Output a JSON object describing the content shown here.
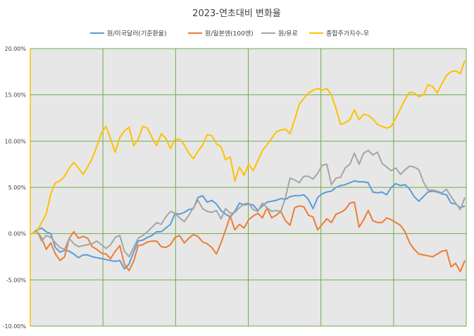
{
  "chart_data": {
    "type": "line",
    "title": "2023-연초대비 변화율",
    "xlabel": "",
    "ylabel": "",
    "ylim": [
      -0.1,
      0.2
    ],
    "yticks": [
      -0.1,
      -0.05,
      0.0,
      0.05,
      0.1,
      0.15,
      0.2
    ],
    "ytick_labels": [
      "-10.00%",
      "-5.00%",
      "0.00%",
      "5.00%",
      "10.00%",
      "15.00%",
      "20.00%"
    ],
    "x_gridlines": 6,
    "grid": true,
    "legend_position": "top",
    "plot_background": "#e7e7e7",
    "grid_color": "#70ad47",
    "series": [
      {
        "name": "원/미국달러(기준환율)",
        "color": "#5b9bd5",
        "values": [
          0.0,
          0.004,
          0.006,
          0.002,
          0.0,
          -0.015,
          -0.02,
          -0.018,
          -0.019,
          -0.022,
          -0.026,
          -0.023,
          -0.023,
          -0.025,
          -0.026,
          -0.027,
          -0.028,
          -0.029,
          -0.03,
          -0.029,
          -0.038,
          -0.033,
          -0.02,
          -0.008,
          -0.007,
          -0.004,
          -0.002,
          0.002,
          0.002,
          0.006,
          0.01,
          0.022,
          0.021,
          0.023,
          0.026,
          0.027,
          0.039,
          0.041,
          0.034,
          0.036,
          0.032,
          0.025,
          0.021,
          0.018,
          0.024,
          0.033,
          0.031,
          0.032,
          0.031,
          0.025,
          0.03,
          0.034,
          0.035,
          0.036,
          0.038,
          0.037,
          0.04,
          0.041,
          0.041,
          0.042,
          0.037,
          0.027,
          0.039,
          0.043,
          0.045,
          0.046,
          0.05,
          0.052,
          0.053,
          0.055,
          0.057,
          0.056,
          0.056,
          0.055,
          0.045,
          0.044,
          0.045,
          0.042,
          0.05,
          0.054,
          0.052,
          0.053,
          0.048,
          0.04,
          0.035,
          0.04,
          0.045,
          0.046,
          0.045,
          0.043,
          0.042,
          0.033,
          0.032,
          0.028,
          0.03
        ]
      },
      {
        "name": "원/일본엔(100엔)",
        "color": "#ed7d31",
        "values": [
          0.0,
          0.003,
          -0.005,
          -0.017,
          -0.01,
          -0.022,
          -0.029,
          -0.025,
          -0.005,
          0.002,
          -0.005,
          -0.003,
          -0.005,
          -0.014,
          -0.017,
          -0.021,
          -0.022,
          -0.027,
          -0.019,
          -0.013,
          -0.033,
          -0.04,
          -0.03,
          -0.013,
          -0.012,
          -0.009,
          -0.008,
          -0.008,
          -0.014,
          -0.015,
          -0.012,
          -0.004,
          -0.002,
          -0.01,
          -0.005,
          -0.001,
          -0.003,
          -0.009,
          -0.011,
          -0.015,
          -0.022,
          -0.01,
          0.004,
          0.019,
          0.004,
          0.01,
          0.006,
          0.015,
          0.019,
          0.022,
          0.017,
          0.028,
          0.017,
          0.02,
          0.024,
          0.014,
          0.009,
          0.028,
          0.03,
          0.029,
          0.02,
          0.018,
          0.004,
          0.01,
          0.016,
          0.012,
          0.021,
          0.023,
          0.026,
          0.033,
          0.034,
          0.007,
          0.015,
          0.025,
          0.014,
          0.012,
          0.012,
          0.017,
          0.015,
          0.012,
          0.009,
          0.002,
          -0.01,
          -0.017,
          -0.022,
          -0.023,
          -0.024,
          -0.025,
          -0.022,
          -0.019,
          -0.018,
          -0.036,
          -0.032,
          -0.041,
          -0.029
        ]
      },
      {
        "name": "원/유로",
        "color": "#a5a5a5",
        "values": [
          0.0,
          0.003,
          -0.008,
          -0.002,
          -0.004,
          -0.01,
          -0.015,
          -0.017,
          -0.005,
          -0.011,
          -0.014,
          -0.013,
          -0.012,
          -0.011,
          -0.008,
          -0.012,
          -0.016,
          -0.012,
          -0.004,
          -0.002,
          -0.019,
          -0.025,
          -0.015,
          -0.005,
          -0.002,
          0.002,
          0.007,
          0.012,
          0.01,
          0.018,
          0.024,
          0.022,
          0.017,
          0.013,
          0.02,
          0.028,
          0.036,
          0.027,
          0.024,
          0.023,
          0.025,
          0.016,
          0.027,
          0.022,
          0.023,
          0.028,
          0.032,
          0.033,
          0.026,
          0.024,
          0.033,
          0.028,
          0.024,
          0.025,
          0.024,
          0.039,
          0.06,
          0.058,
          0.055,
          0.062,
          0.062,
          0.059,
          0.065,
          0.074,
          0.075,
          0.053,
          0.06,
          0.061,
          0.071,
          0.075,
          0.087,
          0.075,
          0.087,
          0.09,
          0.085,
          0.088,
          0.076,
          0.072,
          0.068,
          0.071,
          0.064,
          0.069,
          0.073,
          0.072,
          0.069,
          0.056,
          0.047,
          0.047,
          0.046,
          0.044,
          0.048,
          0.04,
          0.033,
          0.026,
          0.039
        ]
      },
      {
        "name": "종합주가지수-우",
        "color": "#ffc000",
        "values": [
          0.0,
          0.002,
          0.012,
          0.021,
          0.043,
          0.055,
          0.057,
          0.062,
          0.071,
          0.077,
          0.071,
          0.064,
          0.072,
          0.081,
          0.094,
          0.109,
          0.116,
          0.102,
          0.088,
          0.104,
          0.111,
          0.115,
          0.095,
          0.102,
          0.116,
          0.114,
          0.104,
          0.095,
          0.108,
          0.103,
          0.092,
          0.102,
          0.102,
          0.096,
          0.087,
          0.081,
          0.089,
          0.096,
          0.107,
          0.106,
          0.097,
          0.094,
          0.08,
          0.083,
          0.057,
          0.072,
          0.063,
          0.075,
          0.068,
          0.079,
          0.09,
          0.096,
          0.103,
          0.11,
          0.112,
          0.113,
          0.108,
          0.123,
          0.14,
          0.146,
          0.152,
          0.155,
          0.157,
          0.155,
          0.157,
          0.15,
          0.135,
          0.118,
          0.12,
          0.123,
          0.134,
          0.123,
          0.129,
          0.128,
          0.124,
          0.118,
          0.116,
          0.114,
          0.116,
          0.125,
          0.135,
          0.145,
          0.153,
          0.152,
          0.148,
          0.15,
          0.161,
          0.159,
          0.152,
          0.162,
          0.171,
          0.175,
          0.176,
          0.173,
          0.187
        ]
      }
    ]
  }
}
